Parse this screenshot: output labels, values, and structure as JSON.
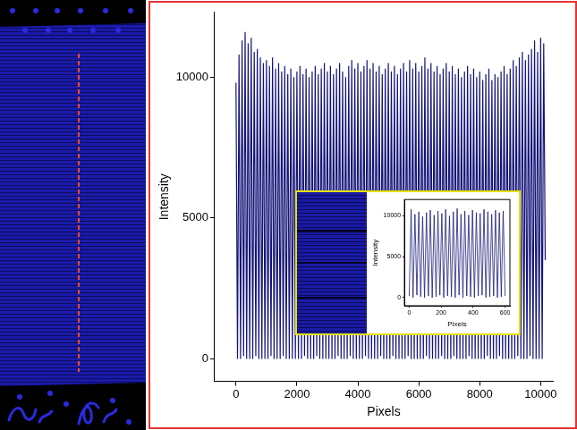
{
  "chart_data": [
    {
      "type": "line",
      "x_label": "Pixels",
      "y_label": "Intensity",
      "color": "#141478",
      "grid": false,
      "xlim": [
        -700,
        10400
      ],
      "xticks": [
        0,
        2000,
        4000,
        6000,
        8000,
        10000
      ],
      "ylim": [
        -800,
        12300
      ],
      "yticks": [
        0,
        5000,
        10000
      ],
      "x": [
        0,
        50,
        100,
        150,
        200,
        250,
        300,
        350,
        400,
        450,
        500,
        550,
        600,
        650,
        700,
        750,
        800,
        850,
        900,
        950,
        1000,
        1050,
        1100,
        1150,
        1200,
        1250,
        1300,
        1350,
        1400,
        1450,
        1500,
        1550,
        1600,
        1650,
        1700,
        1750,
        1800,
        1850,
        1900,
        1950,
        2000,
        2050,
        2100,
        2150,
        2200,
        2250,
        2300,
        2350,
        2400,
        2450,
        2500,
        2550,
        2600,
        2650,
        2700,
        2750,
        2800,
        2850,
        2900,
        2950,
        3000,
        3050,
        3100,
        3150,
        3200,
        3250,
        3300,
        3350,
        3400,
        3450,
        3500,
        3550,
        3600,
        3650,
        3700,
        3750,
        3800,
        3850,
        3900,
        3950,
        4000,
        4050,
        4100,
        4150,
        4200,
        4250,
        4300,
        4350,
        4400,
        4450,
        4500,
        4550,
        4600,
        4650,
        4700,
        4750,
        4800,
        4850,
        4900,
        4950,
        5000,
        5050,
        5100,
        5150,
        5200,
        5250,
        5300,
        5350,
        5400,
        5450,
        5500,
        5550,
        5600,
        5650,
        5700,
        5750,
        5800,
        5850,
        5900,
        5950,
        6000,
        6050,
        6100,
        6150,
        6200,
        6250,
        6300,
        6350,
        6400,
        6450,
        6500,
        6550,
        6600,
        6650,
        6700,
        6750,
        6800,
        6850,
        6900,
        6950,
        7000,
        7050,
        7100,
        7150,
        7200,
        7250,
        7300,
        7350,
        7400,
        7450,
        7500,
        7550,
        7600,
        7650,
        7700,
        7750,
        7800,
        7850,
        7900,
        7950,
        8000,
        8050,
        8100,
        8150,
        8200,
        8250,
        8300,
        8350,
        8400,
        8450,
        8500,
        8550,
        8600,
        8650,
        8700,
        8750,
        8800,
        8850,
        8900,
        8950,
        9000,
        9050,
        9100,
        9150,
        9200,
        9250,
        9300,
        9350,
        9400,
        9450,
        9500,
        9550,
        9600,
        9650,
        9700,
        9750,
        9800,
        9850,
        9900,
        9950,
        10000,
        10050,
        10100,
        10150
      ],
      "values": [
        9800,
        0,
        10800,
        0,
        11300,
        100,
        11600,
        0,
        11200,
        0,
        11400,
        0,
        10900,
        100,
        11000,
        0,
        10700,
        0,
        10500,
        0,
        10600,
        0,
        10400,
        100,
        10700,
        0,
        10300,
        0,
        10500,
        0,
        10200,
        100,
        10400,
        0,
        10100,
        0,
        10300,
        0,
        10000,
        0,
        10200,
        0,
        10400,
        0,
        10100,
        100,
        10300,
        0,
        10000,
        0,
        10200,
        0,
        10400,
        100,
        10100,
        0,
        10300,
        0,
        10500,
        0,
        10200,
        0,
        10400,
        0,
        10100,
        0,
        10300,
        100,
        10500,
        0,
        10200,
        0,
        10000,
        0,
        10400,
        100,
        10600,
        0,
        10300,
        0,
        10500,
        0,
        10200,
        0,
        10400,
        100,
        10600,
        0,
        10300,
        0,
        10500,
        0,
        10200,
        0,
        10400,
        100,
        10100,
        0,
        10300,
        0,
        10500,
        0,
        10200,
        100,
        10400,
        0,
        10100,
        0,
        10300,
        0,
        10500,
        0,
        10200,
        100,
        10600,
        0,
        10300,
        0,
        10500,
        0,
        10200,
        0,
        10400,
        0,
        10700,
        100,
        10300,
        0,
        10500,
        0,
        10200,
        0,
        10400,
        0,
        10100,
        100,
        10300,
        0,
        10500,
        0,
        10200,
        0,
        10400,
        100,
        10100,
        0,
        10300,
        0,
        10000,
        0,
        10200,
        0,
        10400,
        100,
        10100,
        0,
        10300,
        0,
        10000,
        0,
        10200,
        0,
        9900,
        0,
        10100,
        100,
        10300,
        0,
        9900,
        0,
        10100,
        0,
        10000,
        100,
        10200,
        0,
        10400,
        0,
        10100,
        0,
        10300,
        0,
        10600,
        0,
        10400,
        100,
        10700,
        0,
        10900,
        0,
        10600,
        0,
        10800,
        100,
        11000,
        0,
        11300,
        0,
        10900,
        0,
        11400,
        0,
        11200,
        3500
      ]
    },
    {
      "type": "line",
      "x_label": "Pixels",
      "y_label": "Intensity",
      "color": "#1c1c7a",
      "grid": false,
      "xlim": [
        -30,
        630
      ],
      "xticks": [
        0,
        200,
        400,
        600
      ],
      "ylim": [
        -1000,
        12000
      ],
      "yticks": [
        0,
        5000,
        10000
      ],
      "x": [
        0,
        12,
        24,
        36,
        48,
        60,
        72,
        84,
        96,
        108,
        120,
        132,
        144,
        156,
        168,
        180,
        192,
        204,
        216,
        228,
        240,
        252,
        264,
        276,
        288,
        300,
        312,
        324,
        336,
        348,
        360,
        372,
        384,
        396,
        408,
        420,
        432,
        444,
        456,
        468,
        480,
        492,
        504,
        516,
        528,
        540,
        552,
        564,
        576,
        588,
        600
      ],
      "values": [
        200,
        10800,
        0,
        10200,
        300,
        10500,
        100,
        9900,
        0,
        10400,
        200,
        10700,
        0,
        10100,
        100,
        10600,
        300,
        10300,
        0,
        10800,
        200,
        10000,
        100,
        10500,
        0,
        10900,
        300,
        10200,
        0,
        10600,
        200,
        10100,
        100,
        10700,
        0,
        10400,
        200,
        10300,
        300,
        10800,
        0,
        10500,
        100,
        10200,
        200,
        10700,
        0,
        10400,
        100,
        10600,
        200
      ]
    }
  ]
}
